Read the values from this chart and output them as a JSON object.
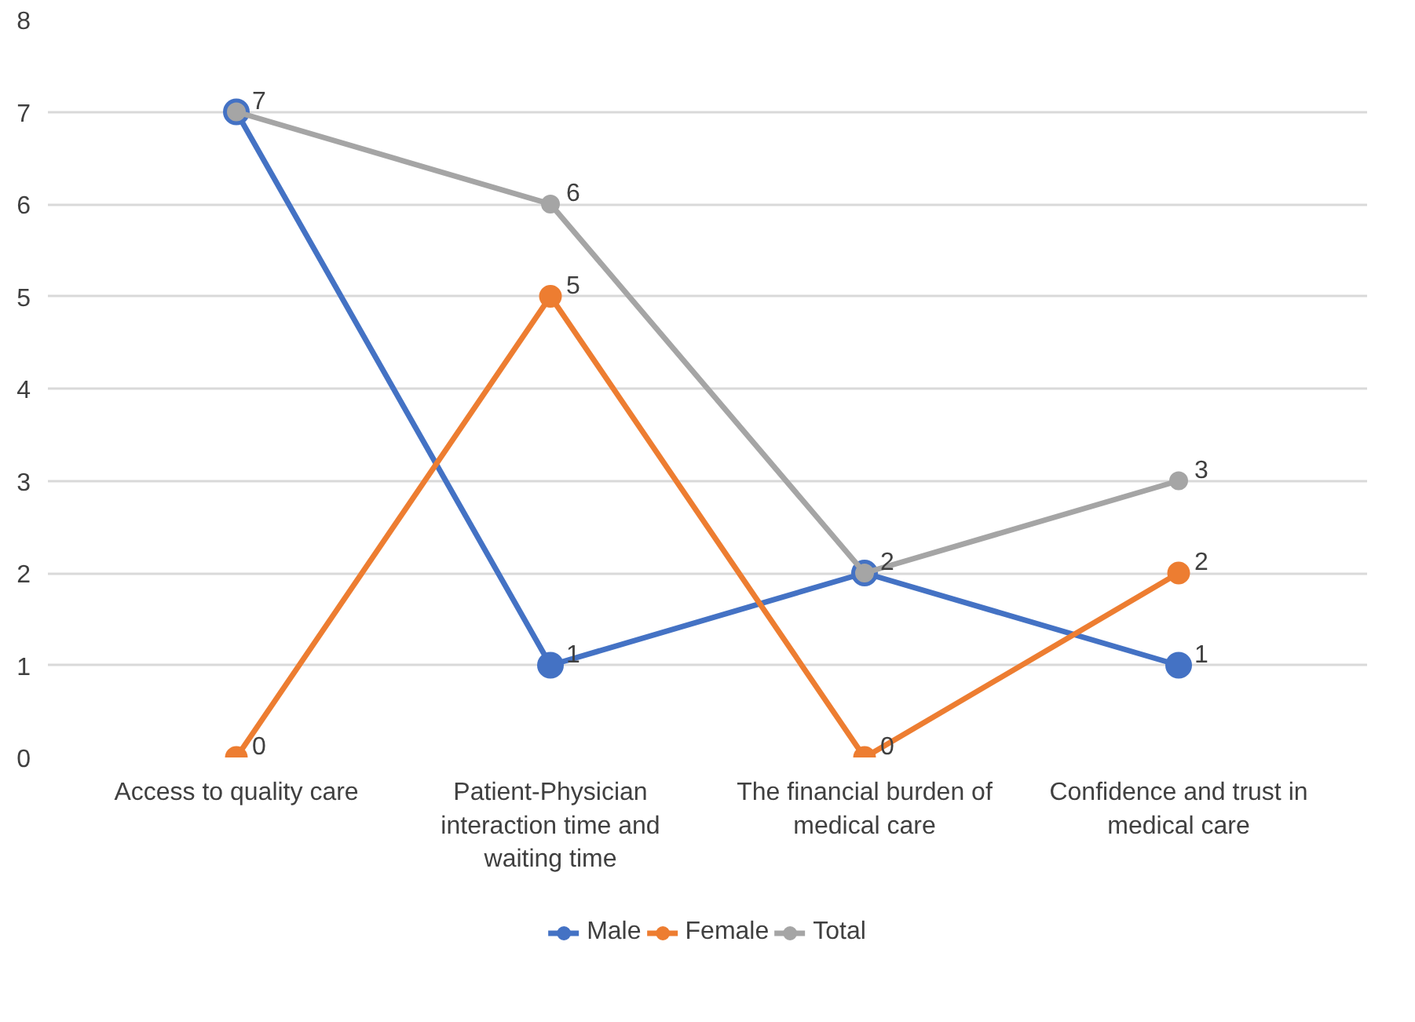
{
  "chart_data": {
    "type": "line",
    "categories": [
      "Access to quality care",
      "Patient-Physician interaction time and waiting time",
      "The financial burden of medical care",
      "Confidence and trust in medical care"
    ],
    "series": [
      {
        "name": "Male",
        "color": "#4472c4",
        "values": [
          7,
          1,
          2,
          1
        ],
        "value_labels": [
          null,
          "1",
          null,
          "1"
        ]
      },
      {
        "name": "Female",
        "color": "#ed7d31",
        "values": [
          0,
          5,
          0,
          2
        ],
        "value_labels": [
          "0",
          "5",
          "0",
          "2"
        ]
      },
      {
        "name": "Total",
        "color": "#a5a5a5",
        "values": [
          7,
          6,
          2,
          3
        ],
        "value_labels": [
          "7",
          "6",
          "2",
          "3"
        ]
      }
    ],
    "ylim": [
      0,
      8
    ],
    "yticks": [
      0,
      1,
      2,
      3,
      4,
      5,
      6,
      7,
      8
    ],
    "grid": "y",
    "legend": "bottom",
    "marker": "circle",
    "line_style": "solid"
  }
}
